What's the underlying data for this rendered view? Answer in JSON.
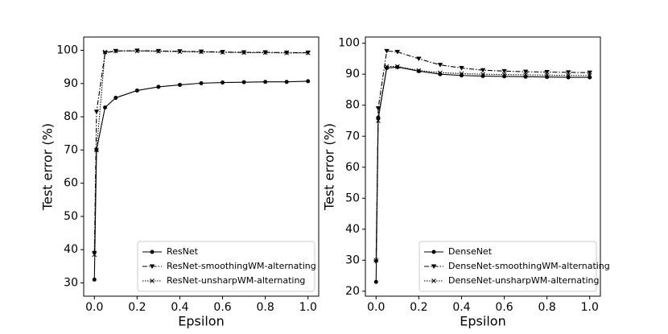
{
  "chart_data": [
    {
      "type": "line",
      "x_label": "Epsilon",
      "y_label": "Test error (%)",
      "x": [
        0,
        0.01,
        0.05,
        0.1,
        0.2,
        0.3,
        0.4,
        0.5,
        0.6,
        0.7,
        0.8,
        0.9,
        1.0
      ],
      "xlim": [
        -0.05,
        1.05
      ],
      "ylim": [
        26,
        104
      ],
      "xticks": [
        {
          "value": 0,
          "label": "0.0"
        },
        0.2,
        0.4,
        0.6,
        0.8,
        {
          "value": 1,
          "label": "1.0"
        }
      ],
      "yticks": [
        30,
        40,
        50,
        60,
        70,
        80,
        90,
        100
      ],
      "legend": "lower right",
      "series": [
        {
          "name": "ResNet",
          "color": "#000000",
          "linestyle": "solid",
          "marker": "circle",
          "values": [
            31,
            70,
            82.8,
            85.7,
            87.9,
            89,
            89.6,
            90.1,
            90.3,
            90.4,
            90.5,
            90.5,
            90.7
          ]
        },
        {
          "name": "ResNet-smoothingWM-alternating",
          "color": "#000000",
          "linestyle": "dashdot",
          "marker": "triangle-down",
          "values": [
            39,
            81.5,
            99.2,
            99.8,
            99.9,
            99.8,
            99.7,
            99.6,
            99.5,
            99.4,
            99.4,
            99.3,
            99.3
          ]
        },
        {
          "name": "ResNet-unsharpWM-alternating",
          "color": "#000000",
          "linestyle": "dotted",
          "marker": "x",
          "values": [
            38.5,
            70,
            99.5,
            99.8,
            99.8,
            99.7,
            99.6,
            99.5,
            99.4,
            99.3,
            99.3,
            99.2,
            99.2
          ]
        }
      ]
    },
    {
      "type": "line",
      "x_label": "Epsilon",
      "y_label": "Test error (%)",
      "x": [
        0,
        0.01,
        0.05,
        0.1,
        0.2,
        0.3,
        0.4,
        0.5,
        0.6,
        0.7,
        0.8,
        0.9,
        1.0
      ],
      "xlim": [
        -0.05,
        1.05
      ],
      "ylim": [
        18.4,
        102
      ],
      "xticks": [
        {
          "value": 0,
          "label": "0.0"
        },
        0.2,
        0.4,
        0.6,
        0.8,
        {
          "value": 1,
          "label": "1.0"
        }
      ],
      "yticks": [
        20,
        30,
        40,
        50,
        60,
        70,
        80,
        90,
        100
      ],
      "legend": "lower right",
      "series": [
        {
          "name": "DenseNet",
          "color": "#000000",
          "linestyle": "solid",
          "marker": "circle",
          "values": [
            23,
            76,
            92,
            92.3,
            91,
            90,
            89.6,
            89.4,
            89.3,
            89.2,
            89.1,
            89.0,
            89.0
          ]
        },
        {
          "name": "DenseNet-smoothingWM-alternating",
          "color": "#000000",
          "linestyle": "dashdot",
          "marker": "triangle-down",
          "values": [
            29.5,
            79,
            97.5,
            97.2,
            95,
            93,
            92,
            91.3,
            91,
            90.8,
            90.7,
            90.6,
            90.5
          ]
        },
        {
          "name": "DenseNet-unsharpWM-alternating",
          "color": "#000000",
          "linestyle": "dotted",
          "marker": "x",
          "values": [
            30,
            75,
            92.5,
            92.5,
            91.2,
            90.5,
            90.2,
            90,
            89.9,
            89.8,
            89.7,
            89.6,
            89.6
          ]
        }
      ]
    }
  ]
}
